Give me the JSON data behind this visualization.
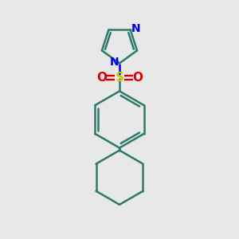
{
  "bg_color": "#e8e8e8",
  "bond_color": "#2d7a6a",
  "n_color": "#0000ee",
  "s_color": "#cccc00",
  "o_color": "#dd0000",
  "lw": 1.8,
  "figsize": [
    3.0,
    3.0
  ],
  "dpi": 100,
  "xlim": [
    0.15,
    0.85
  ],
  "ylim": [
    0.02,
    0.98
  ]
}
